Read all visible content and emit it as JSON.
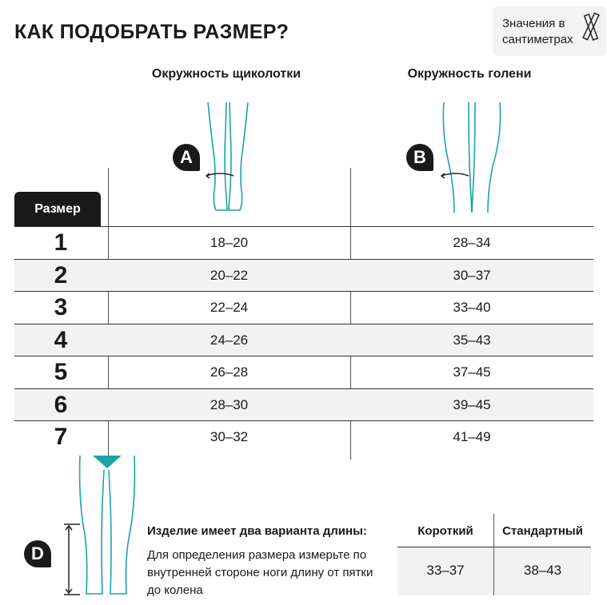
{
  "title": "КАК ПОДОБРАТЬ РАЗМЕР?",
  "units_note": "Значения в сантиметрах",
  "units_icon": "ruler-icon",
  "accent_color": "#1aa3a8",
  "columns": {
    "size_header": "Размер",
    "a": {
      "label": "Окружность щиколотки",
      "badge": "A"
    },
    "b": {
      "label": "Окружность голени",
      "badge": "B"
    }
  },
  "rows": [
    {
      "size": "1",
      "a": "18–20",
      "b": "28–34"
    },
    {
      "size": "2",
      "a": "20–22",
      "b": "30–37"
    },
    {
      "size": "3",
      "a": "22–24",
      "b": "33–40"
    },
    {
      "size": "4",
      "a": "24–26",
      "b": "35–43"
    },
    {
      "size": "5",
      "a": "26–28",
      "b": "37–45"
    },
    {
      "size": "6",
      "a": "28–30",
      "b": "39–45"
    },
    {
      "size": "7",
      "a": "30–32",
      "b": "41–49"
    }
  ],
  "length": {
    "badge": "D",
    "heading": "Изделие имеет два варианта длины:",
    "description": "Для определения размера измерьте по внутренней стороне ноги длину от пятки до колена",
    "short_label": "Короткий",
    "standard_label": "Стандартный",
    "short_value": "33–37",
    "standard_value": "38–43"
  }
}
